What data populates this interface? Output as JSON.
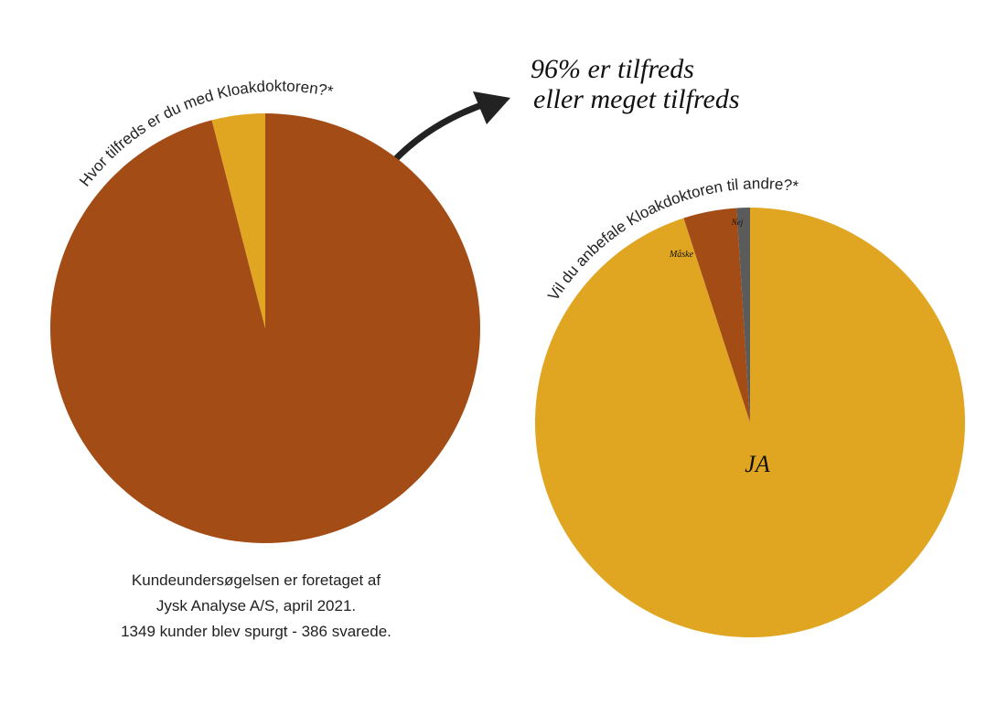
{
  "chart_data": [
    {
      "type": "pie",
      "title": "Hvor tilfreds er du med Kloakdoktoren?*",
      "categories": [
        null,
        null
      ],
      "values": [
        96,
        4
      ],
      "colors": [
        "#a34c15",
        "#e0a521"
      ],
      "annotation": [
        "96% er tilfreds",
        "eller meget tilfreds"
      ],
      "note": [
        "Kundeundersøgelsen er foretaget af",
        "Jysk Analyse A/S, april 2021.",
        "1349 kunder blev spurgt - 386 svarede."
      ]
    },
    {
      "type": "pie",
      "title": "Vil du anbefale Kloakdoktoren til andre?*",
      "categories": [
        "JA",
        "Måske",
        "Nej"
      ],
      "values": [
        95,
        4,
        1
      ],
      "colors": [
        "#e0a521",
        "#a34c15",
        "#5b5b5b"
      ]
    }
  ]
}
